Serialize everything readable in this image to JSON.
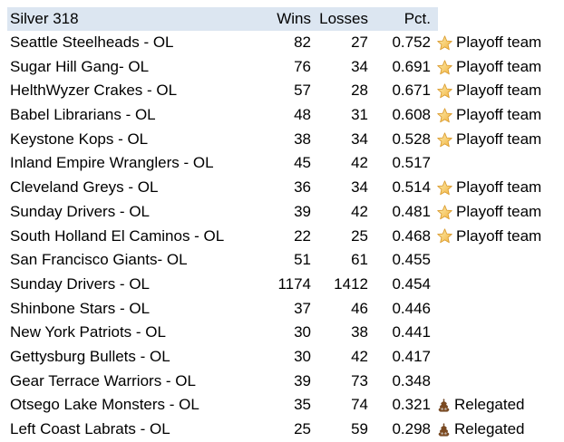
{
  "header": {
    "title": "Silver 318",
    "columns": {
      "wins": "Wins",
      "losses": "Losses",
      "pct": "Pct."
    }
  },
  "badges": {
    "playoff": {
      "label": "Playoff team",
      "icon": "star-icon"
    },
    "relegated": {
      "label": "Relegated",
      "icon": "poop-icon"
    }
  },
  "colors": {
    "header_bg": "#dce6f1",
    "text": "#000000",
    "star_fill_light": "#fdeeb2",
    "star_fill_dark": "#f2b33d",
    "star_stroke": "#d9992b",
    "poop_fill": "#7b4a21"
  },
  "rows": [
    {
      "name": "Seattle Steelheads - OL",
      "wins": "82",
      "losses": "27",
      "pct": "0.752",
      "badge": "playoff"
    },
    {
      "name": "Sugar Hill Gang- OL",
      "wins": "76",
      "losses": "34",
      "pct": "0.691",
      "badge": "playoff"
    },
    {
      "name": "HelthWyzer Crakes - OL",
      "wins": "57",
      "losses": "28",
      "pct": "0.671",
      "badge": "playoff"
    },
    {
      "name": "Babel Librarians - OL",
      "wins": "48",
      "losses": "31",
      "pct": "0.608",
      "badge": "playoff"
    },
    {
      "name": "Keystone Kops - OL",
      "wins": "38",
      "losses": "34",
      "pct": "0.528",
      "badge": "playoff"
    },
    {
      "name": "Inland Empire Wranglers - OL",
      "wins": "45",
      "losses": "42",
      "pct": "0.517",
      "badge": ""
    },
    {
      "name": "Cleveland Greys - OL",
      "wins": "36",
      "losses": "34",
      "pct": "0.514",
      "badge": "playoff"
    },
    {
      "name": "Sunday Drivers - OL",
      "wins": "39",
      "losses": "42",
      "pct": "0.481",
      "badge": "playoff"
    },
    {
      "name": "South Holland El Caminos - OL",
      "wins": "22",
      "losses": "25",
      "pct": "0.468",
      "badge": "playoff"
    },
    {
      "name": "San Francisco Giants- OL",
      "wins": "51",
      "losses": "61",
      "pct": "0.455",
      "badge": ""
    },
    {
      "name": "Sunday Drivers - OL",
      "wins": "1174",
      "losses": "1412",
      "pct": "0.454",
      "badge": ""
    },
    {
      "name": "Shinbone Stars - OL",
      "wins": "37",
      "losses": "46",
      "pct": "0.446",
      "badge": ""
    },
    {
      "name": "New York Patriots - OL",
      "wins": "30",
      "losses": "38",
      "pct": "0.441",
      "badge": ""
    },
    {
      "name": "Gettysburg Bullets - OL",
      "wins": "30",
      "losses": "42",
      "pct": "0.417",
      "badge": ""
    },
    {
      "name": "Gear Terrace Warriors - OL",
      "wins": "39",
      "losses": "73",
      "pct": "0.348",
      "badge": ""
    },
    {
      "name": "Otsego Lake Monsters - OL",
      "wins": "35",
      "losses": "74",
      "pct": "0.321",
      "badge": "relegated"
    },
    {
      "name": "Left Coast Labrats - OL",
      "wins": "25",
      "losses": "59",
      "pct": "0.298",
      "badge": "relegated"
    }
  ]
}
